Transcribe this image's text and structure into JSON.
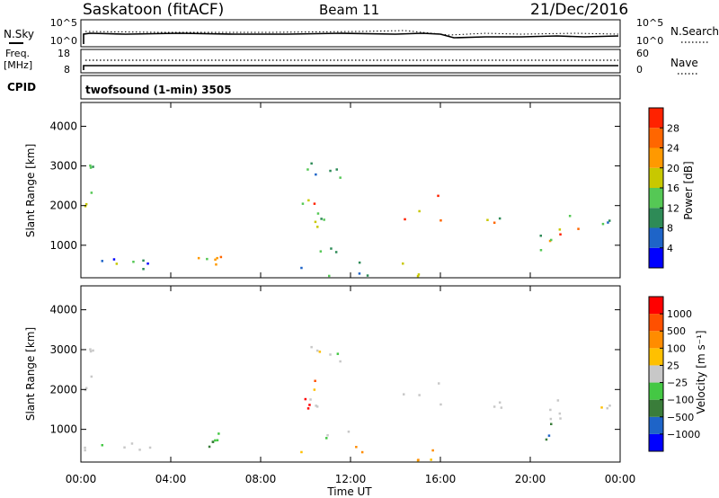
{
  "header": {
    "site": "Saskatoon (fitACF)",
    "beam": "Beam 11",
    "date": "21/Dec/2016"
  },
  "summary_panel": {
    "left_label": "N.Sky",
    "left_ticks": [
      "10^5",
      "10^0"
    ],
    "right_label": "N.Search",
    "right_ticks": [
      "10^5",
      "10^0"
    ]
  },
  "freq_panel": {
    "label_line1": "Freq.",
    "label_line2": "[MHz]",
    "left_ticks": [
      "18",
      "8"
    ],
    "right_label": "Nave",
    "right_ticks": [
      "60",
      "0"
    ],
    "cpid_label": "CPID"
  },
  "cpid_text": "twofsound (1-min) 3505",
  "colors": {
    "power": [
      "#0000ff",
      "#1e64c8",
      "#2e8b57",
      "#55c855",
      "#c8c800",
      "#ff9900",
      "#ff6600",
      "#ff2200"
    ],
    "velocity": [
      "#ff0000",
      "#ff5000",
      "#ff8c00",
      "#ffc000",
      "#c8c8c8",
      "#44c844",
      "#3a7d3a",
      "#1e64c8",
      "#0000ff"
    ]
  },
  "chart_data": [
    {
      "type": "heatmap",
      "name": "power",
      "ylabel": "Slant Range [km]",
      "ylim": [
        180,
        4600
      ],
      "yticks": [
        1000,
        2000,
        3000,
        4000
      ],
      "xlim_hours": [
        0,
        24
      ],
      "colorbar_label": "Power [dB]",
      "colorbar_ticks": [
        "4",
        "8",
        "12",
        "16",
        "20",
        "24",
        "28"
      ]
    },
    {
      "type": "heatmap",
      "name": "velocity",
      "ylabel": "Slant Range [km]",
      "ylim": [
        180,
        4600
      ],
      "yticks": [
        1000,
        2000,
        3000,
        4000
      ],
      "xlim_hours": [
        0,
        24
      ],
      "colorbar_label": "Velocity [m s⁻¹]",
      "colorbar_ticks": [
        "1000",
        "500",
        "100",
        "25",
        "−25",
        "−100",
        "−500",
        "−1000"
      ]
    }
  ],
  "x_axis": {
    "ticks": [
      "00:00",
      "04:00",
      "08:00",
      "12:00",
      "16:00",
      "20:00",
      "00:00"
    ],
    "label": "Time UT"
  }
}
